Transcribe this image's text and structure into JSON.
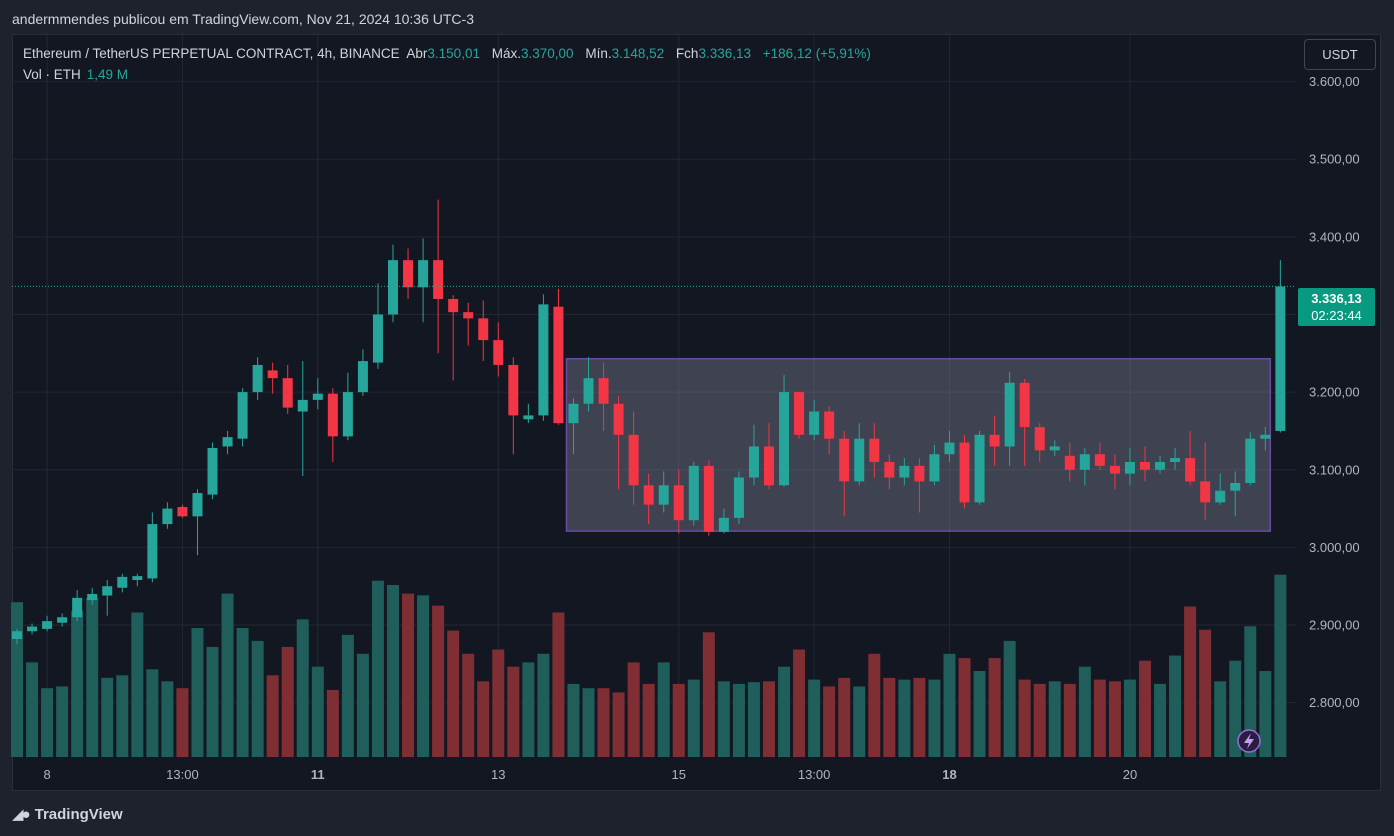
{
  "caption": "andermmendes publicou em TradingView.com, Nov 21, 2024 10:36 UTC-3",
  "legend": {
    "symbol": "Ethereum / TetherUS PERPETUAL CONTRACT, 4h, BINANCE",
    "open_label": "Abr",
    "open": "3.150,01",
    "high_label": "Máx.",
    "high": "3.370,00",
    "low_label": "Mín.",
    "low": "3.148,52",
    "close_label": "Fch",
    "close": "3.336,13",
    "change": "+186,12 (+5,91%)",
    "volume_label": "Vol · ETH",
    "volume": "1,49 M"
  },
  "currency": "USDT",
  "price_badge": {
    "price": "3.336,13",
    "countdown": "02:23:44"
  },
  "footer": {
    "brand": "TradingView",
    "logo_icon": "tradingview-logo-icon"
  },
  "colors": {
    "up": "#26a69a",
    "down": "#f23645",
    "up_vol": "#1f5e5b",
    "down_vol": "#7f2f33",
    "box": "#6a4ba3"
  },
  "chart_data": {
    "type": "candlestick",
    "symbol": "ETHUSDT.P",
    "timeframe": "4h",
    "ylim": [
      2730,
      3660
    ],
    "y_ticks": [
      {
        "value": 2800,
        "label": "2.800,00"
      },
      {
        "value": 2900,
        "label": "2.900,00"
      },
      {
        "value": 3000,
        "label": "3.000,00"
      },
      {
        "value": 3100,
        "label": "3.100,00"
      },
      {
        "value": 3200,
        "label": "3.200,00"
      },
      {
        "value": 3300,
        "label": "3.300,00"
      },
      {
        "value": 3400,
        "label": "3.400,00"
      },
      {
        "value": 3500,
        "label": "3.500,00"
      },
      {
        "value": 3600,
        "label": "3.600,00"
      }
    ],
    "x_ticks": [
      {
        "index": 2,
        "label": "8",
        "bold": false
      },
      {
        "index": 11,
        "label": "13:00",
        "bold": false
      },
      {
        "index": 20,
        "label": "11",
        "bold": true
      },
      {
        "index": 32,
        "label": "13",
        "bold": false
      },
      {
        "index": 44,
        "label": "15",
        "bold": false
      },
      {
        "index": 53,
        "label": "13:00",
        "bold": false
      },
      {
        "index": 62,
        "label": "18",
        "bold": true
      },
      {
        "index": 74,
        "label": "20",
        "bold": false
      }
    ],
    "last_price": 3336.13,
    "range_box": {
      "start_index": 37,
      "end_index": 83,
      "top": 3243,
      "bottom": 3021
    },
    "candles": [
      [
        2882,
        2892,
        2875,
        2895,
        180
      ],
      [
        2892,
        2898,
        2888,
        2902,
        110
      ],
      [
        2895,
        2905,
        2892,
        2912,
        80
      ],
      [
        2903,
        2910,
        2898,
        2915,
        82
      ],
      [
        2910,
        2935,
        2905,
        2945,
        170
      ],
      [
        2932,
        2940,
        2926,
        2948,
        185
      ],
      [
        2938,
        2950,
        2912,
        2958,
        92
      ],
      [
        2948,
        2962,
        2942,
        2966,
        95
      ],
      [
        2958,
        2963,
        2950,
        2966,
        168
      ],
      [
        2960,
        3030,
        2955,
        3045,
        102
      ],
      [
        3030,
        3050,
        3024,
        3058,
        88
      ],
      [
        3052,
        3040,
        3038,
        3055,
        80
      ],
      [
        3040,
        3070,
        2990,
        3075,
        150
      ],
      [
        3068,
        3128,
        3062,
        3135,
        128
      ],
      [
        3130,
        3142,
        3120,
        3150,
        190
      ],
      [
        3140,
        3200,
        3130,
        3205,
        150
      ],
      [
        3200,
        3235,
        3190,
        3245,
        135
      ],
      [
        3228,
        3218,
        3198,
        3238,
        95
      ],
      [
        3218,
        3180,
        3172,
        3235,
        128
      ],
      [
        3175,
        3190,
        3092,
        3240,
        160
      ],
      [
        3190,
        3198,
        3178,
        3218,
        105
      ],
      [
        3198,
        3143,
        3110,
        3205,
        78
      ],
      [
        3143,
        3200,
        3138,
        3225,
        142
      ],
      [
        3200,
        3240,
        3195,
        3255,
        120
      ],
      [
        3238,
        3300,
        3230,
        3340,
        205
      ],
      [
        3300,
        3370,
        3290,
        3390,
        200
      ],
      [
        3370,
        3335,
        3320,
        3385,
        190
      ],
      [
        3335,
        3370,
        3290,
        3398,
        188
      ],
      [
        3370,
        3320,
        3250,
        3448,
        176
      ],
      [
        3320,
        3303,
        3215,
        3325,
        147
      ],
      [
        3303,
        3295,
        3260,
        3315,
        120
      ],
      [
        3295,
        3267,
        3240,
        3318,
        88
      ],
      [
        3267,
        3235,
        3220,
        3290,
        125
      ],
      [
        3235,
        3170,
        3120,
        3245,
        105
      ],
      [
        3165,
        3170,
        3160,
        3185,
        110
      ],
      [
        3170,
        3313,
        3163,
        3326,
        120
      ],
      [
        3310,
        3160,
        3158,
        3333,
        168
      ],
      [
        3160,
        3185,
        3120,
        3192,
        85
      ],
      [
        3185,
        3218,
        3175,
        3245,
        80
      ],
      [
        3218,
        3185,
        3150,
        3238,
        80
      ],
      [
        3185,
        3145,
        3075,
        3195,
        75
      ],
      [
        3145,
        3080,
        3055,
        3175,
        110
      ],
      [
        3080,
        3055,
        3030,
        3095,
        85
      ],
      [
        3055,
        3080,
        3045,
        3098,
        110
      ],
      [
        3080,
        3035,
        3018,
        3100,
        85
      ],
      [
        3035,
        3105,
        3028,
        3110,
        90
      ],
      [
        3105,
        3020,
        3015,
        3112,
        145
      ],
      [
        3020,
        3038,
        3018,
        3050,
        88
      ],
      [
        3038,
        3090,
        3030,
        3098,
        85
      ],
      [
        3090,
        3130,
        3080,
        3158,
        87
      ],
      [
        3130,
        3080,
        3075,
        3160,
        88
      ],
      [
        3080,
        3200,
        3078,
        3222,
        105
      ],
      [
        3200,
        3145,
        3140,
        3200,
        125
      ],
      [
        3145,
        3175,
        3138,
        3190,
        90
      ],
      [
        3175,
        3140,
        3120,
        3182,
        82
      ],
      [
        3140,
        3085,
        3040,
        3150,
        92
      ],
      [
        3085,
        3140,
        3080,
        3160,
        82
      ],
      [
        3140,
        3110,
        3090,
        3160,
        120
      ],
      [
        3110,
        3090,
        3075,
        3120,
        92
      ],
      [
        3090,
        3105,
        3080,
        3115,
        90
      ],
      [
        3105,
        3085,
        3045,
        3115,
        92
      ],
      [
        3085,
        3120,
        3080,
        3132,
        90
      ],
      [
        3120,
        3135,
        3110,
        3150,
        120
      ],
      [
        3135,
        3058,
        3050,
        3145,
        115
      ],
      [
        3058,
        3145,
        3055,
        3150,
        100
      ],
      [
        3145,
        3130,
        3105,
        3170,
        115
      ],
      [
        3130,
        3212,
        3105,
        3226,
        135
      ],
      [
        3212,
        3155,
        3105,
        3217,
        90
      ],
      [
        3155,
        3125,
        3110,
        3160,
        85
      ],
      [
        3125,
        3130,
        3118,
        3138,
        88
      ],
      [
        3118,
        3100,
        3085,
        3135,
        85
      ],
      [
        3100,
        3120,
        3080,
        3128,
        105
      ],
      [
        3120,
        3105,
        3100,
        3135,
        90
      ],
      [
        3105,
        3095,
        3075,
        3120,
        88
      ],
      [
        3095,
        3110,
        3080,
        3128,
        90
      ],
      [
        3110,
        3100,
        3085,
        3130,
        112
      ],
      [
        3100,
        3110,
        3095,
        3118,
        85
      ],
      [
        3110,
        3115,
        3100,
        3128,
        118
      ],
      [
        3115,
        3085,
        3080,
        3150,
        175
      ],
      [
        3085,
        3058,
        3035,
        3135,
        148
      ],
      [
        3058,
        3073,
        3055,
        3095,
        88
      ],
      [
        3073,
        3083,
        3040,
        3098,
        112
      ],
      [
        3083,
        3140,
        3080,
        3148,
        152
      ],
      [
        3140,
        3145,
        3125,
        3155,
        100
      ],
      [
        3150,
        3336,
        3148,
        3370,
        212
      ]
    ]
  }
}
